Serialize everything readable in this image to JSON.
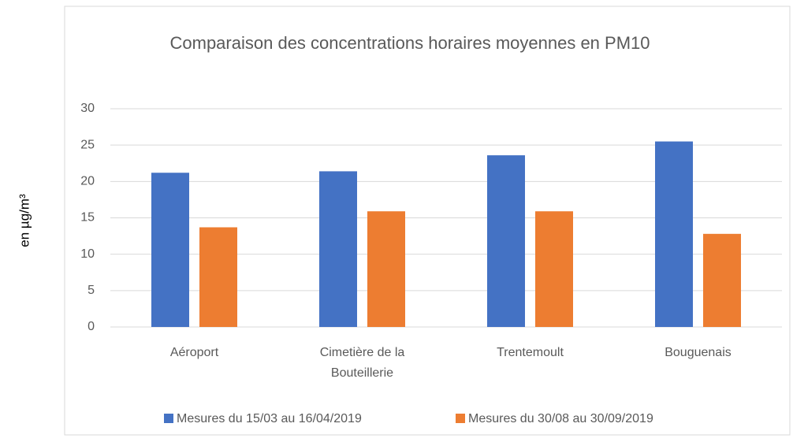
{
  "chart_data": {
    "type": "bar",
    "title": "Comparaison des concentrations horaires moyennes en PM10",
    "y_label": "en µg/m³",
    "categories": [
      "Aéroport",
      "Cimetière de la Bouteillerie",
      "Trentemoult",
      "Bouguenais"
    ],
    "series": [
      {
        "name": "Mesures du 15/03 au 16/04/2019",
        "color": "#4472c4",
        "values": [
          21.2,
          21.4,
          23.6,
          25.5
        ]
      },
      {
        "name": "Mesures du 30/08 au 30/09/2019",
        "color": "#ed7d31",
        "values": [
          13.7,
          15.9,
          15.9,
          12.8
        ]
      }
    ],
    "ylim": [
      0,
      30
    ],
    "yticks": [
      0,
      5,
      10,
      15,
      20,
      25,
      30
    ],
    "grid": true,
    "legend": "bottom"
  }
}
